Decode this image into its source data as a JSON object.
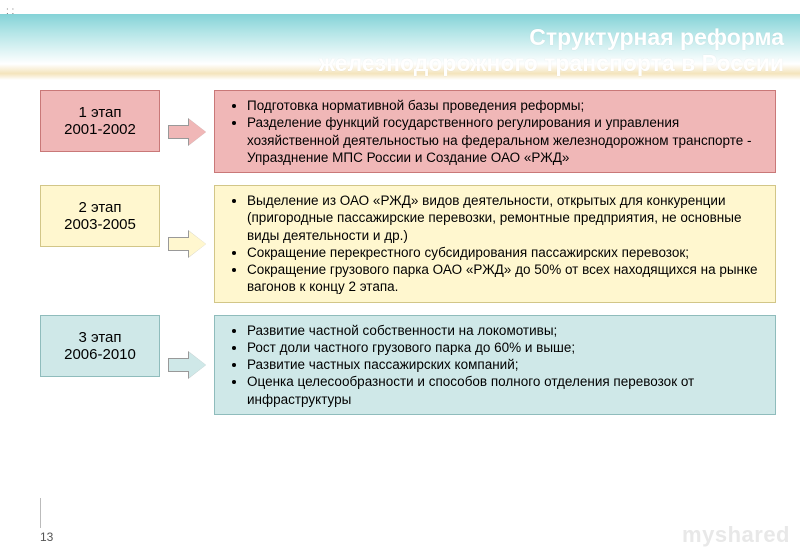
{
  "title_line1": "Структурная реформа",
  "title_line2": "железнодорожного транспорта в России",
  "header": {
    "gradient_top": "#84d2d7",
    "gradient_mid": "#b7e6e8",
    "accent_gold": "#e9c978"
  },
  "stages": [
    {
      "label_line1": "1 этап",
      "label_line2": "2001-2002",
      "label_bg": "#f0b7b7",
      "label_border": "#c97878",
      "arrow_fill": "#f0b7b7",
      "content_bg": "#f0b7b7",
      "content_border": "#c97878",
      "bullets": [
        "Подготовка нормативной базы проведения реформы;",
        "Разделение функций государственного регулирования и управления хозяйственной деятельностью на федеральном железнодорожном транспорте - Упразднение МПС России и Создание ОАО «РЖД»"
      ]
    },
    {
      "label_line1": "2 этап",
      "label_line2": "2003-2005",
      "label_bg": "#fff7cf",
      "label_border": "#d2c688",
      "arrow_fill": "#fff7cf",
      "content_bg": "#fff7cf",
      "content_border": "#d2c688",
      "bullets": [
        "Выделение из ОАО «РЖД» видов деятельности, открытых для конкуренции (пригородные пассажирские перевозки, ремонтные предприятия, не основные виды деятельности и др.)",
        "Сокращение перекрестного субсидирования пассажирских перевозок;",
        "Сокращение грузового парка ОАО «РЖД» до 50% от всех находящихся на рынке вагонов к концу 2 этапа."
      ]
    },
    {
      "label_line1": "3 этап",
      "label_line2": "2006-2010",
      "label_bg": "#cfe8e8",
      "label_border": "#8fbcbc",
      "arrow_fill": "#cfe8e8",
      "content_bg": "#cfe8e8",
      "content_border": "#8fbcbc",
      "bullets": [
        "Развитие частной собственности на локомотивы;",
        "Рост доли частного грузового парка до 60% и выше;",
        "Развитие частных пассажирских компаний;",
        "Оценка целесообразности и способов полного отделения перевозок от инфраструктуры"
      ]
    }
  ],
  "page_number": "13",
  "watermark": "myshared",
  "fonts": {
    "title_pt": 23,
    "body_pt": 13.5,
    "label_pt": 15
  }
}
